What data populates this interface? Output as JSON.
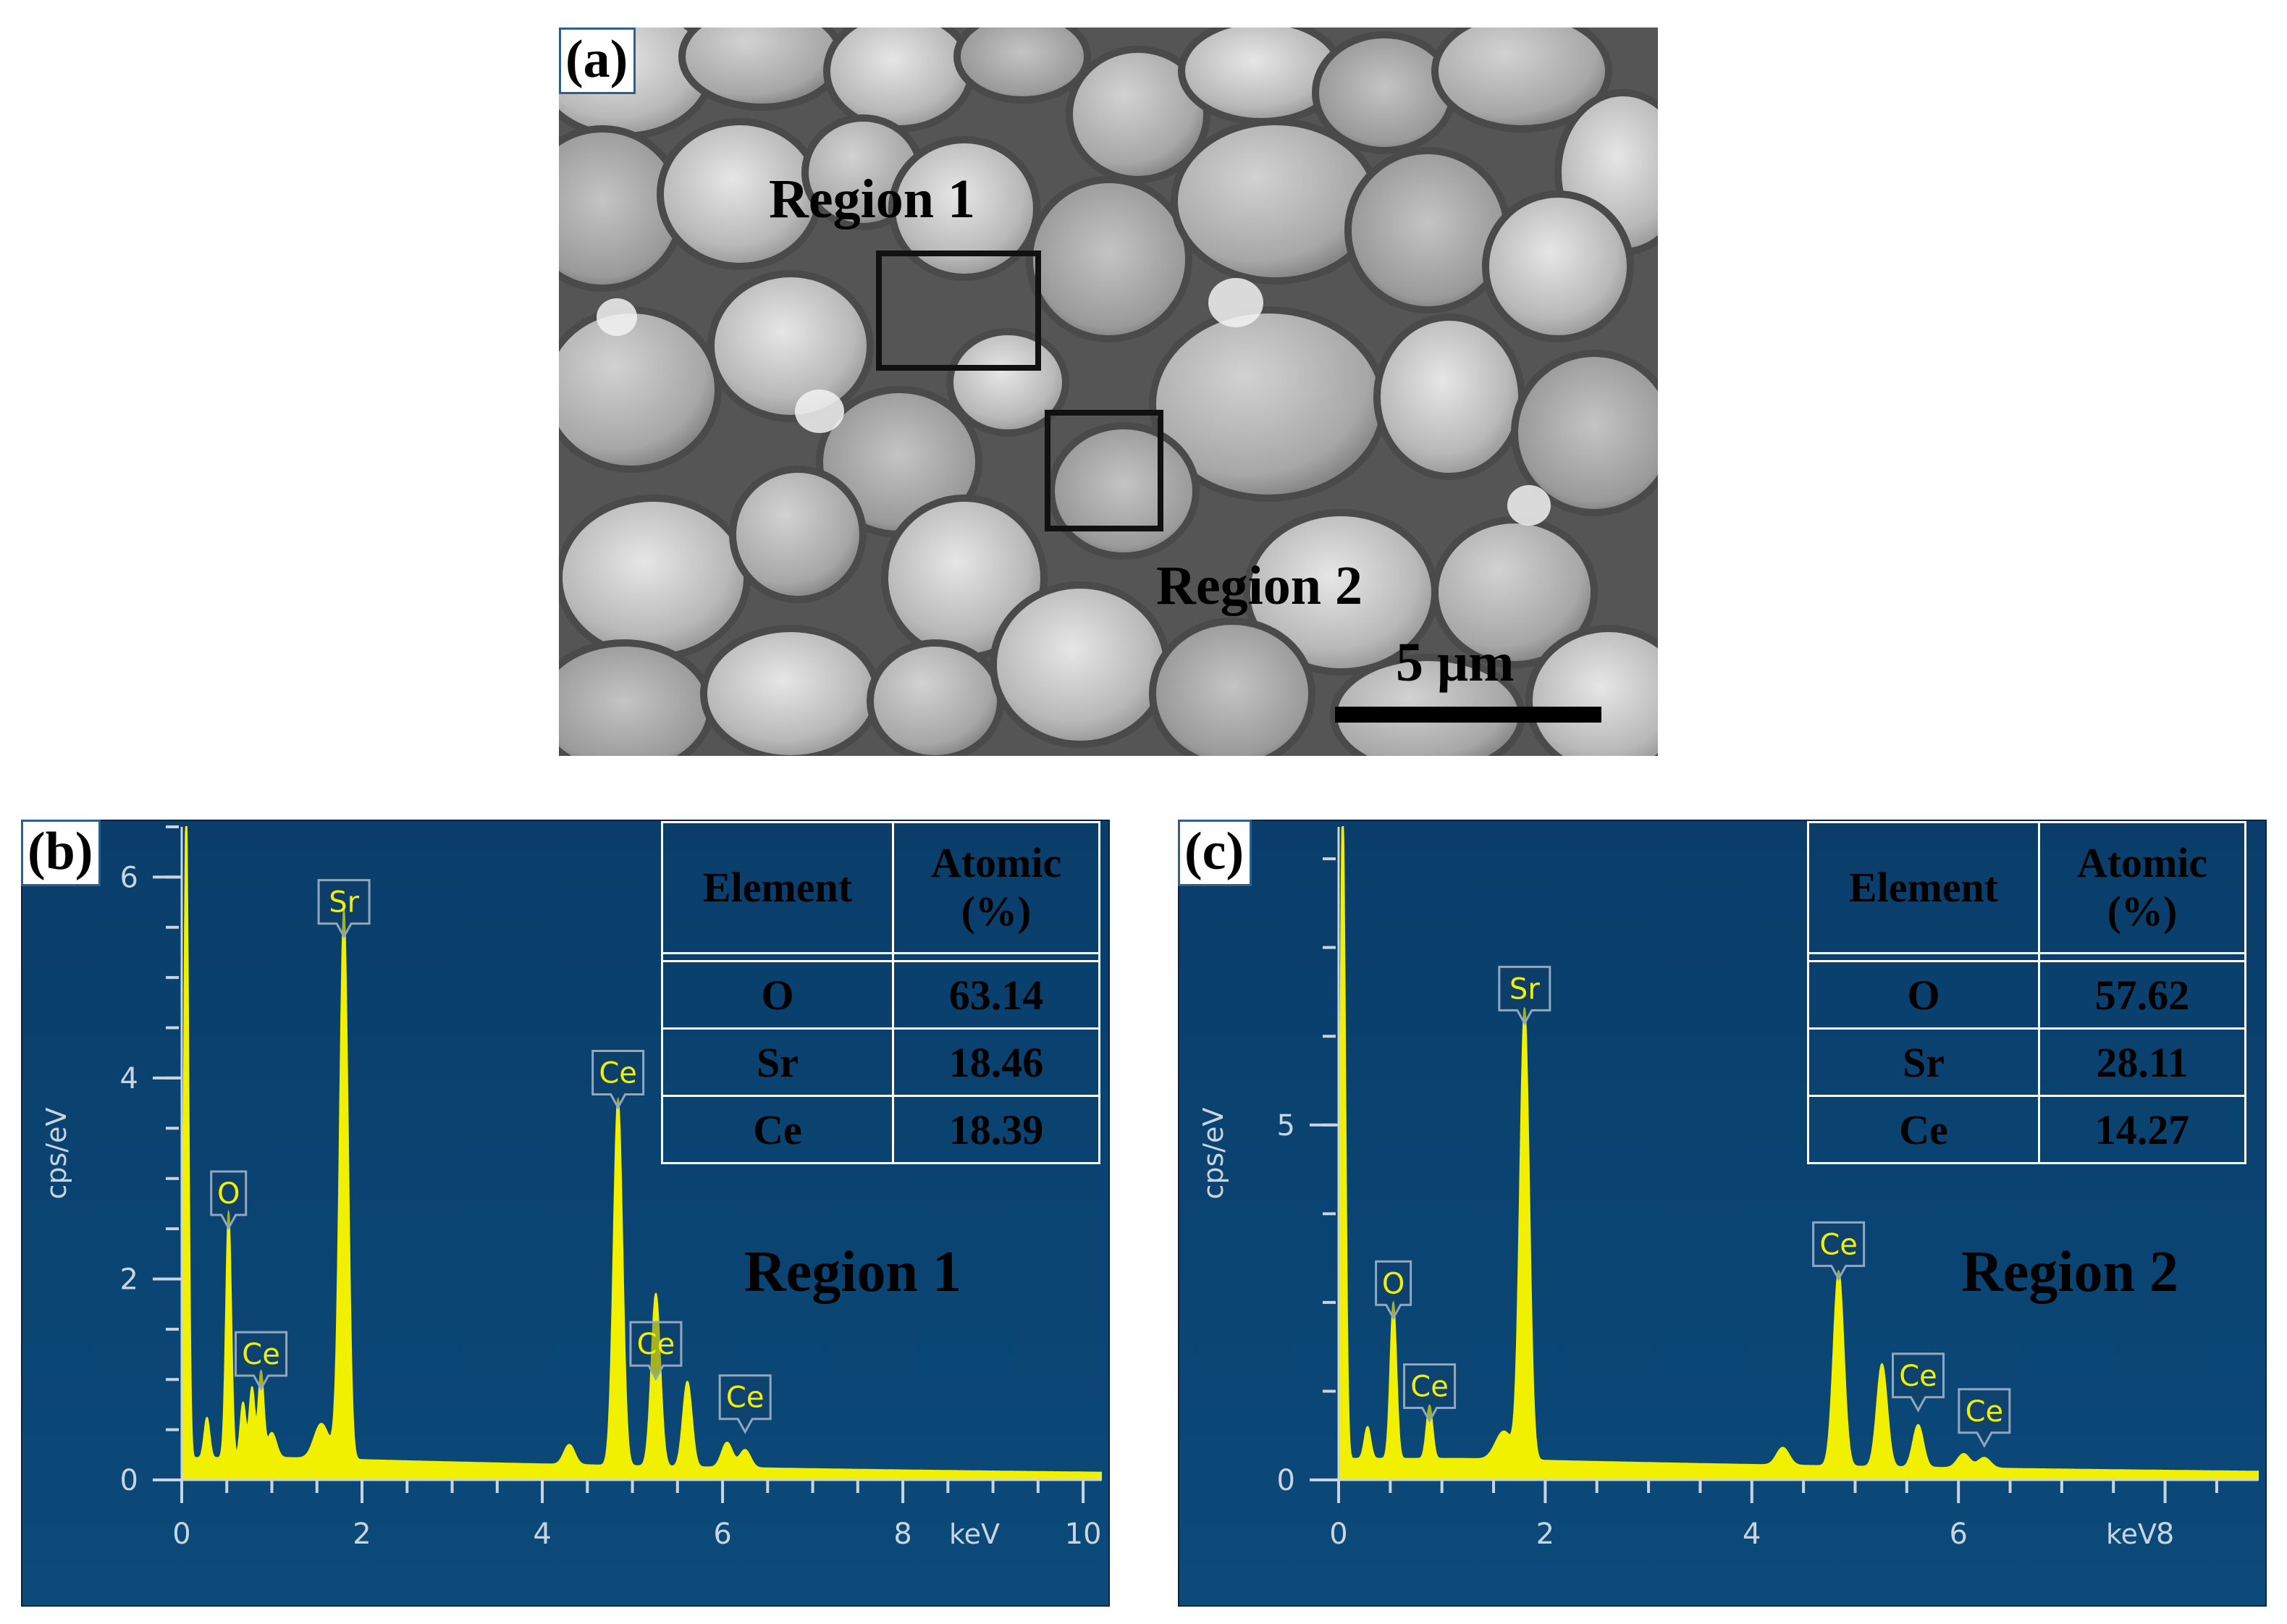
{
  "panel_a": {
    "tag": "(a)",
    "region1_label": "Region 1",
    "region2_label": "Region 2",
    "scale_bar_label": "5 μm"
  },
  "panel_b": {
    "tag": "(b)",
    "region_label": "Region 1",
    "table": {
      "headers": [
        "Element",
        "Atomic\n(%)"
      ],
      "rows": [
        [
          "O",
          "63.14"
        ],
        [
          "Sr",
          "18.46"
        ],
        [
          "Ce",
          "18.39"
        ]
      ]
    }
  },
  "panel_c": {
    "tag": "(c)",
    "region_label": "Region 2",
    "table": {
      "headers": [
        "Element",
        "Atomic\n(%)"
      ],
      "rows": [
        [
          "O",
          "57.62"
        ],
        [
          "Sr",
          "28.11"
        ],
        [
          "Ce",
          "14.27"
        ]
      ]
    }
  },
  "chart_data": [
    {
      "type": "line",
      "xlabel": "keV",
      "ylabel": "cps/eV",
      "xlim": [
        0,
        10.2
      ],
      "ylim": [
        0,
        6.5
      ],
      "xticks": [
        0,
        2,
        4,
        6,
        8,
        10
      ],
      "yticks": [
        0,
        2,
        4,
        6
      ],
      "background": "#0b4a7a",
      "line_color": "#f0f000",
      "fill_color": "#f0f000",
      "baseline": 0.22,
      "peaks": [
        {
          "x": 0.05,
          "y": 6.5,
          "w": 0.025
        },
        {
          "x": 0.28,
          "y": 0.4,
          "w": 0.03
        },
        {
          "x": 0.52,
          "y": 2.45,
          "w": 0.03
        },
        {
          "x": 0.68,
          "y": 0.55,
          "w": 0.03
        },
        {
          "x": 0.78,
          "y": 0.7,
          "w": 0.03
        },
        {
          "x": 0.88,
          "y": 0.85,
          "w": 0.03
        },
        {
          "x": 1.0,
          "y": 0.25,
          "w": 0.05
        },
        {
          "x": 1.55,
          "y": 0.35,
          "w": 0.08
        },
        {
          "x": 1.74,
          "y": 0.25,
          "w": 0.05
        },
        {
          "x": 1.8,
          "y": 5.35,
          "w": 0.045
        },
        {
          "x": 4.3,
          "y": 0.2,
          "w": 0.06
        },
        {
          "x": 4.84,
          "y": 3.65,
          "w": 0.05
        },
        {
          "x": 5.26,
          "y": 1.72,
          "w": 0.05
        },
        {
          "x": 5.61,
          "y": 0.85,
          "w": 0.05
        },
        {
          "x": 6.05,
          "y": 0.25,
          "w": 0.06
        },
        {
          "x": 6.25,
          "y": 0.18,
          "w": 0.06
        }
      ],
      "labels": [
        {
          "text": "O",
          "x": 0.52,
          "y": 2.45
        },
        {
          "text": "Ce",
          "x": 0.88,
          "y": 0.85
        },
        {
          "text": "Sr",
          "x": 1.8,
          "y": 5.35
        },
        {
          "text": "Ce",
          "x": 4.84,
          "y": 3.65
        },
        {
          "text": "Ce",
          "x": 5.26,
          "y": 0.95
        },
        {
          "text": "Ce",
          "x": 6.25,
          "y": 0.42
        }
      ]
    },
    {
      "type": "line",
      "xlabel": "keV",
      "ylabel": "cps/eV",
      "xlim": [
        0,
        8.9
      ],
      "ylim": [
        0,
        9.2
      ],
      "xticks": [
        0,
        2,
        4,
        6,
        8
      ],
      "yticks": [
        0,
        5
      ],
      "background": "#0b4a7a",
      "line_color": "#f0f000",
      "fill_color": "#f0f000",
      "baseline": 0.3,
      "peaks": [
        {
          "x": 0.04,
          "y": 9.2,
          "w": 0.025
        },
        {
          "x": 0.28,
          "y": 0.45,
          "w": 0.03
        },
        {
          "x": 0.53,
          "y": 2.2,
          "w": 0.03
        },
        {
          "x": 0.88,
          "y": 0.75,
          "w": 0.03
        },
        {
          "x": 1.6,
          "y": 0.4,
          "w": 0.08
        },
        {
          "x": 1.8,
          "y": 6.35,
          "w": 0.045
        },
        {
          "x": 4.3,
          "y": 0.25,
          "w": 0.06
        },
        {
          "x": 4.84,
          "y": 2.75,
          "w": 0.05
        },
        {
          "x": 5.26,
          "y": 1.45,
          "w": 0.05
        },
        {
          "x": 5.61,
          "y": 0.6,
          "w": 0.05
        },
        {
          "x": 6.05,
          "y": 0.2,
          "w": 0.06
        },
        {
          "x": 6.25,
          "y": 0.15,
          "w": 0.06
        }
      ],
      "labels": [
        {
          "text": "O",
          "x": 0.53,
          "y": 2.2
        },
        {
          "text": "Ce",
          "x": 0.88,
          "y": 0.75
        },
        {
          "text": "Sr",
          "x": 1.8,
          "y": 6.35
        },
        {
          "text": "Ce",
          "x": 4.84,
          "y": 2.75
        },
        {
          "text": "Ce",
          "x": 5.61,
          "y": 0.9
        },
        {
          "text": "Ce",
          "x": 6.25,
          "y": 0.4
        }
      ]
    }
  ]
}
